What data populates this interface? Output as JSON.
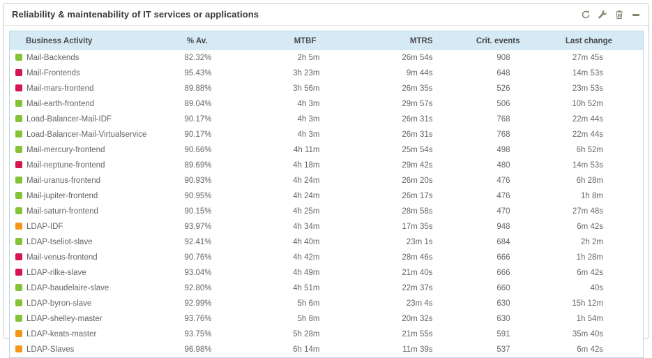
{
  "widget": {
    "title": "Reliability & maintenability of IT services or applications"
  },
  "toolbar": {
    "icons": [
      "refresh-icon",
      "wrench-icon",
      "trash-icon",
      "minimize-icon"
    ]
  },
  "colors": {
    "green": "#85c237",
    "red": "#d6164f",
    "orange": "#f39619",
    "header_bg": "#d6eaf5",
    "table_border": "#b9d7e8"
  },
  "table": {
    "columns": [
      "Business Activity",
      "% Av.",
      "MTBF",
      "MTRS",
      "Crit. events",
      "Last change"
    ],
    "rows": [
      {
        "status": "green",
        "name": "Mail-Backends",
        "av": "82.32%",
        "mtbf": "2h 5m",
        "mtrs": "26m 54s",
        "crit": "908",
        "last": "27m 45s"
      },
      {
        "status": "red",
        "name": "Mail-Frontends",
        "av": "95.43%",
        "mtbf": "3h 23m",
        "mtrs": "9m 44s",
        "crit": "648",
        "last": "14m 53s"
      },
      {
        "status": "red",
        "name": "Mail-mars-frontend",
        "av": "89.88%",
        "mtbf": "3h 56m",
        "mtrs": "26m 35s",
        "crit": "526",
        "last": "23m 53s"
      },
      {
        "status": "green",
        "name": "Mail-earth-frontend",
        "av": "89.04%",
        "mtbf": "4h 3m",
        "mtrs": "29m 57s",
        "crit": "506",
        "last": "10h 52m"
      },
      {
        "status": "green",
        "name": "Load-Balancer-Mail-IDF",
        "av": "90.17%",
        "mtbf": "4h 3m",
        "mtrs": "26m 31s",
        "crit": "768",
        "last": "22m 44s"
      },
      {
        "status": "green",
        "name": "Load-Balancer-Mail-Virtualservice",
        "av": "90.17%",
        "mtbf": "4h 3m",
        "mtrs": "26m 31s",
        "crit": "768",
        "last": "22m 44s"
      },
      {
        "status": "green",
        "name": "Mail-mercury-frontend",
        "av": "90.66%",
        "mtbf": "4h 11m",
        "mtrs": "25m 54s",
        "crit": "498",
        "last": "6h 52m"
      },
      {
        "status": "red",
        "name": "Mail-neptune-frontend",
        "av": "89.69%",
        "mtbf": "4h 18m",
        "mtrs": "29m 42s",
        "crit": "480",
        "last": "14m 53s"
      },
      {
        "status": "green",
        "name": "Mail-uranus-frontend",
        "av": "90.93%",
        "mtbf": "4h 24m",
        "mtrs": "26m 20s",
        "crit": "476",
        "last": "6h 28m"
      },
      {
        "status": "green",
        "name": "Mail-jupiter-frontend",
        "av": "90.95%",
        "mtbf": "4h 24m",
        "mtrs": "26m 17s",
        "crit": "476",
        "last": "1h 8m"
      },
      {
        "status": "green",
        "name": "Mail-saturn-frontend",
        "av": "90.15%",
        "mtbf": "4h 25m",
        "mtrs": "28m 58s",
        "crit": "470",
        "last": "27m 48s"
      },
      {
        "status": "orange",
        "name": "LDAP-IDF",
        "av": "93.97%",
        "mtbf": "4h 34m",
        "mtrs": "17m 35s",
        "crit": "948",
        "last": "6m 42s"
      },
      {
        "status": "green",
        "name": "LDAP-tseliot-slave",
        "av": "92.41%",
        "mtbf": "4h 40m",
        "mtrs": "23m 1s",
        "crit": "684",
        "last": "2h 2m"
      },
      {
        "status": "red",
        "name": "Mail-venus-frontend",
        "av": "90.76%",
        "mtbf": "4h 42m",
        "mtrs": "28m 46s",
        "crit": "666",
        "last": "1h 28m"
      },
      {
        "status": "red",
        "name": "LDAP-rilke-slave",
        "av": "93.04%",
        "mtbf": "4h 49m",
        "mtrs": "21m 40s",
        "crit": "666",
        "last": "6m 42s"
      },
      {
        "status": "green",
        "name": "LDAP-baudelaire-slave",
        "av": "92.80%",
        "mtbf": "4h 51m",
        "mtrs": "22m 37s",
        "crit": "660",
        "last": "40s"
      },
      {
        "status": "green",
        "name": "LDAP-byron-slave",
        "av": "92.99%",
        "mtbf": "5h 6m",
        "mtrs": "23m 4s",
        "crit": "630",
        "last": "15h 12m"
      },
      {
        "status": "green",
        "name": "LDAP-shelley-master",
        "av": "93.76%",
        "mtbf": "5h 8m",
        "mtrs": "20m 32s",
        "crit": "630",
        "last": "1h 54m"
      },
      {
        "status": "orange",
        "name": "LDAP-keats-master",
        "av": "93.75%",
        "mtbf": "5h 28m",
        "mtrs": "21m 55s",
        "crit": "591",
        "last": "35m 40s"
      },
      {
        "status": "orange",
        "name": "LDAP-Slaves",
        "av": "96.98%",
        "mtbf": "6h 14m",
        "mtrs": "11m 39s",
        "crit": "537",
        "last": "6m 42s"
      }
    ]
  }
}
